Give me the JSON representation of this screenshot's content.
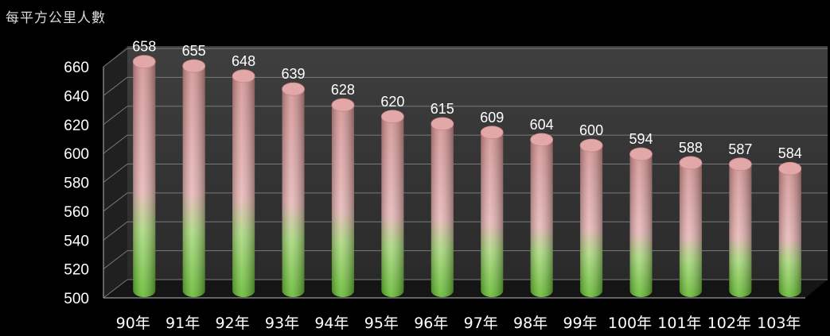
{
  "chart_data": {
    "type": "bar",
    "title": "每平方公里人數",
    "xlabel": "",
    "ylabel": "",
    "categories": [
      "90年",
      "91年",
      "92年",
      "93年",
      "94年",
      "95年",
      "96年",
      "97年",
      "98年",
      "99年",
      "100年",
      "101年",
      "102年",
      "103年"
    ],
    "values": [
      658,
      655,
      648,
      639,
      628,
      620,
      615,
      609,
      604,
      600,
      594,
      588,
      587,
      584
    ],
    "ylim": [
      500,
      660
    ],
    "yticks": [
      500,
      520,
      540,
      560,
      580,
      600,
      620,
      640,
      660
    ],
    "grid": true,
    "legend": "none",
    "colors": {
      "top": "#d99a9a",
      "bottom": "#7acb2e",
      "background": "#000000",
      "wall": "#3a3a3a",
      "text": "#ffffff"
    }
  }
}
